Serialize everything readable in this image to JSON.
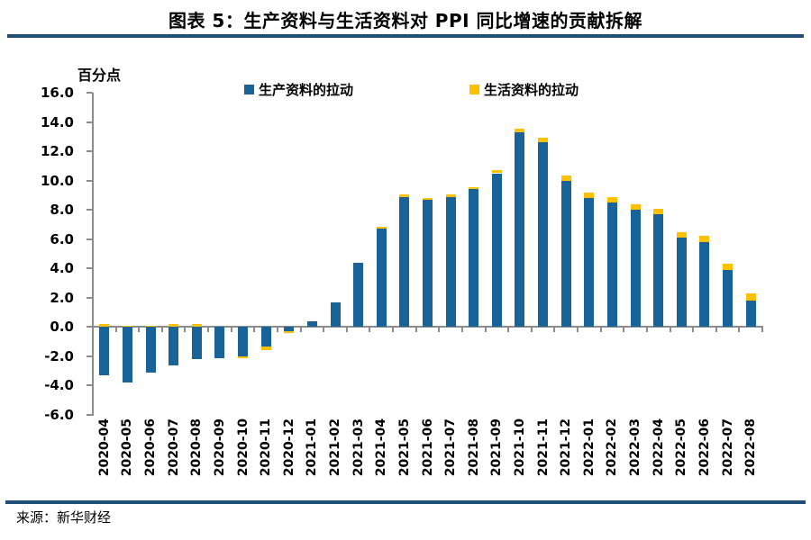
{
  "header": {
    "title": "图表 5：生产资料与生活资料对 PPI 同比增速的贡献拆解"
  },
  "footer": {
    "source": "来源：新华财经"
  },
  "colors": {
    "divider_navy": "#1F4E79",
    "axis_gray": "#8C8C8C",
    "production_blue": "#1A6399",
    "living_yellow": "#FFC000"
  },
  "chart_data": {
    "type": "bar",
    "stacked": true,
    "title": "图表 5：生产资料与生活资料对 PPI 同比增速的贡献拆解",
    "unit_label": "百分点",
    "legend_position": "top",
    "grid": false,
    "ylim": [
      -6.0,
      16.0
    ],
    "y_ticks": [
      "16.0",
      "14.0",
      "12.0",
      "10.0",
      "8.0",
      "6.0",
      "4.0",
      "2.0",
      "0.0",
      "-2.0",
      "-4.0",
      "-6.0"
    ],
    "categories": [
      "2020-04",
      "2020-05",
      "2020-06",
      "2020-07",
      "2020-08",
      "2020-09",
      "2020-10",
      "2020-11",
      "2020-12",
      "2021-01",
      "2021-02",
      "2021-03",
      "2021-04",
      "2021-05",
      "2021-06",
      "2021-07",
      "2021-08",
      "2021-09",
      "2021-10",
      "2021-11",
      "2021-12",
      "2022-01",
      "2022-02",
      "2022-03",
      "2022-04",
      "2022-05",
      "2022-06",
      "2022-07",
      "2022-08"
    ],
    "series": [
      {
        "name": "生产资料的拉动",
        "color": "#1A6399",
        "values": [
          -3.3,
          -3.8,
          -3.1,
          -2.6,
          -2.2,
          -2.1,
          -2.0,
          -1.3,
          -0.3,
          0.4,
          1.7,
          4.4,
          6.7,
          8.9,
          8.7,
          8.9,
          9.4,
          10.5,
          13.3,
          12.6,
          10.0,
          8.8,
          8.5,
          8.0,
          7.7,
          6.1,
          5.8,
          3.9,
          1.8
        ]
      },
      {
        "name": "生活资料的拉动",
        "color": "#FFC000",
        "values": [
          0.2,
          0.1,
          0.1,
          0.2,
          0.2,
          0.0,
          -0.1,
          -0.3,
          -0.1,
          0.0,
          0.0,
          0.0,
          0.15,
          0.15,
          0.1,
          0.15,
          0.15,
          0.2,
          0.25,
          0.3,
          0.35,
          0.35,
          0.35,
          0.35,
          0.35,
          0.35,
          0.4,
          0.4,
          0.5
        ]
      }
    ]
  }
}
